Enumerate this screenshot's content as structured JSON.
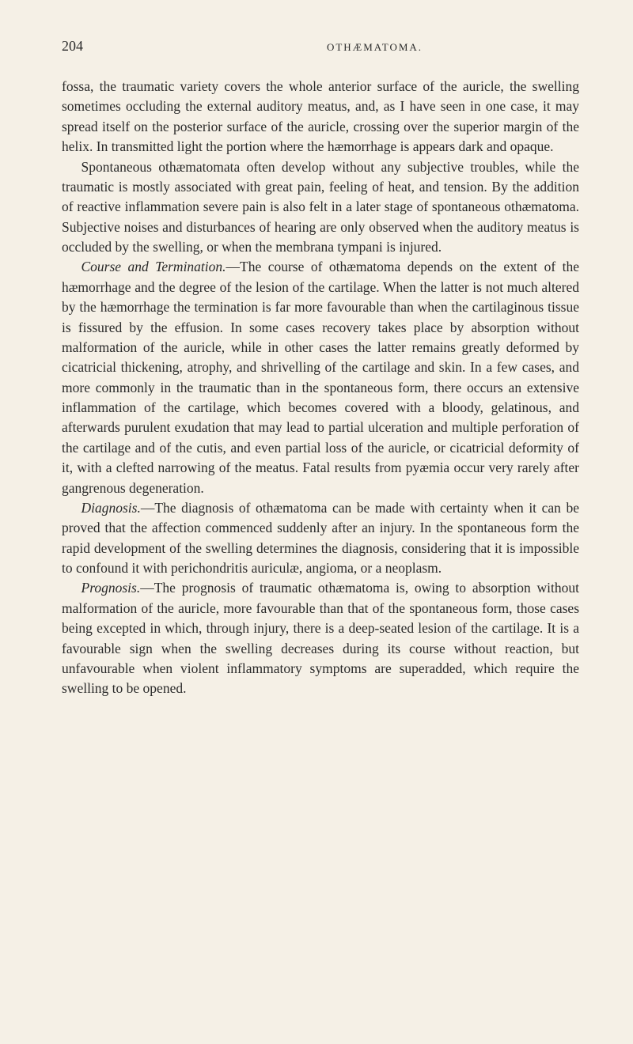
{
  "page_number": "204",
  "running_title": "OTHÆMATOMA.",
  "background_color": "#f5f0e6",
  "text_color": "#2a2a2a",
  "font_size_body": 17.5,
  "font_size_header_number": 18,
  "font_size_running_title": 13,
  "line_height": 1.45,
  "paragraphs": [
    {
      "indent": false,
      "text": "fossa, the traumatic variety covers the whole anterior surface of the auricle, the swelling sometimes occluding the external auditory meatus, and, as I have seen in one case, it may spread itself on the posterior surface of the auricle, crossing over the superior margin of the helix. In transmitted light the portion where the hæmorrhage is appears dark and opaque."
    },
    {
      "indent": true,
      "text": "Spontaneous othæmatomata often develop without any subjective troubles, while the traumatic is mostly associated with great pain, feeling of heat, and tension. By the addition of reactive inflammation severe pain is also felt in a later stage of spontaneous othæmatoma. Subjective noises and disturbances of hearing are only observed when the auditory meatus is occluded by the swelling, or when the membrana tympani is injured."
    },
    {
      "indent": true,
      "lead_italic": "Course and Termination.",
      "text": "—The course of othæmatoma depends on the extent of the hæmorrhage and the degree of the lesion of the cartilage. When the latter is not much altered by the hæmorrhage the termination is far more favourable than when the cartilaginous tissue is fissured by the effusion. In some cases recovery takes place by absorption without malformation of the auricle, while in other cases the latter remains greatly deformed by cicatricial thickening, atrophy, and shrivelling of the cartilage and skin. In a few cases, and more commonly in the traumatic than in the spontaneous form, there occurs an extensive inflammation of the cartilage, which becomes covered with a bloody, gelatinous, and afterwards purulent exudation that may lead to partial ulceration and multiple perforation of the cartilage and of the cutis, and even partial loss of the auricle, or cicatricial deformity of it, with a clefted narrowing of the meatus. Fatal results from pyæmia occur very rarely after gangrenous degeneration."
    },
    {
      "indent": true,
      "lead_italic": "Diagnosis.",
      "text": "—The diagnosis of othæmatoma can be made with certainty when it can be proved that the affection commenced suddenly after an injury. In the spontaneous form the rapid development of the swelling determines the diagnosis, considering that it is impossible to confound it with perichondritis auriculæ, angioma, or a neoplasm."
    },
    {
      "indent": true,
      "lead_italic": "Prognosis.",
      "text": "—The prognosis of traumatic othæmatoma is, owing to absorption without malformation of the auricle, more favourable than that of the spontaneous form, those cases being excepted in which, through injury, there is a deep-seated lesion of the cartilage. It is a favourable sign when the swelling decreases during its course without reaction, but unfavourable when violent inflammatory symptoms are superadded, which require the swelling to be opened."
    }
  ]
}
